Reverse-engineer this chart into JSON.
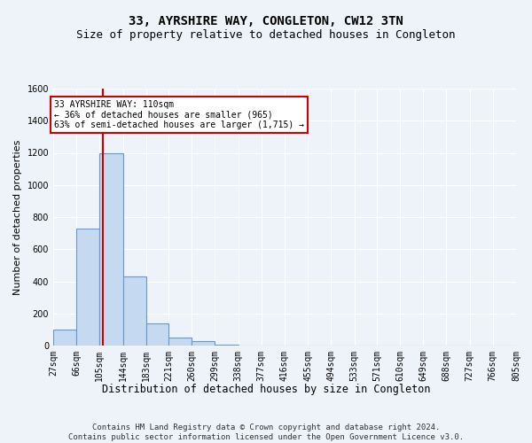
{
  "title": "33, AYRSHIRE WAY, CONGLETON, CW12 3TN",
  "subtitle": "Size of property relative to detached houses in Congleton",
  "xlabel": "Distribution of detached houses by size in Congleton",
  "ylabel": "Number of detached properties",
  "bin_edges": [
    27,
    66,
    105,
    144,
    183,
    221,
    260,
    299,
    338,
    377,
    416,
    455,
    494,
    533,
    571,
    610,
    649,
    688,
    727,
    766,
    805
  ],
  "bar_heights": [
    100,
    730,
    1200,
    430,
    140,
    50,
    25,
    5,
    0,
    0,
    0,
    0,
    0,
    0,
    0,
    0,
    0,
    0,
    0,
    0
  ],
  "bar_color": "#c5d9f0",
  "bar_edge_color": "#6699cc",
  "property_size": 110,
  "vline_color": "#cc0000",
  "annotation_text": "33 AYRSHIRE WAY: 110sqm\n← 36% of detached houses are smaller (965)\n63% of semi-detached houses are larger (1,715) →",
  "annotation_box_color": "#ffffff",
  "annotation_box_edge": "#cc0000",
  "ylim": [
    0,
    1600
  ],
  "yticks": [
    0,
    200,
    400,
    600,
    800,
    1000,
    1200,
    1400,
    1600
  ],
  "footer": "Contains HM Land Registry data © Crown copyright and database right 2024.\nContains public sector information licensed under the Open Government Licence v3.0.",
  "bg_color": "#eef2f9",
  "grid_color": "#ffffff",
  "title_fontsize": 10,
  "subtitle_fontsize": 9,
  "axis_label_fontsize": 8.5,
  "tick_fontsize": 7,
  "footer_fontsize": 6.5,
  "ylabel_fontsize": 8
}
